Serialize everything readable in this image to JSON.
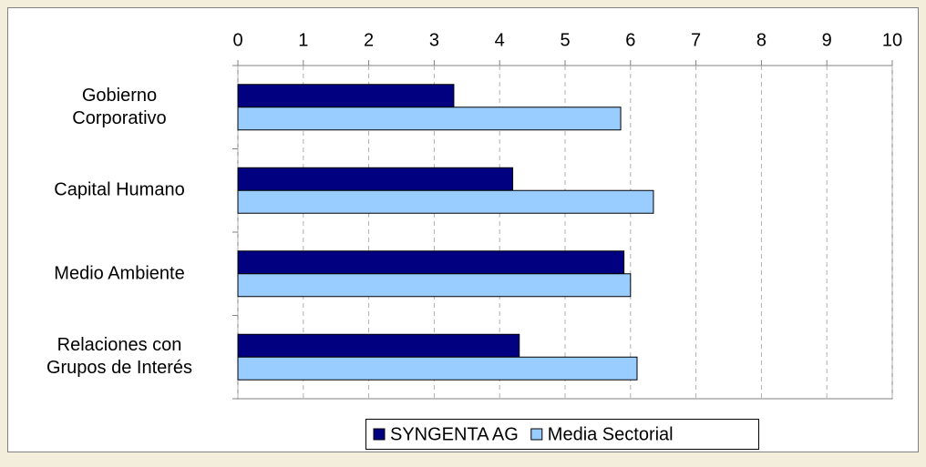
{
  "chart_data": {
    "type": "bar",
    "orientation": "horizontal",
    "categories": [
      "Gobierno\nCorporativo",
      "Capital Humano",
      "Medio Ambiente",
      "Relaciones con\nGrupos de Interés"
    ],
    "series": [
      {
        "name": "SYNGENTA AG",
        "color": "#000080",
        "values": [
          3.3,
          4.2,
          5.9,
          4.3
        ]
      },
      {
        "name": "Media Sectorial",
        "color": "#99ccff",
        "values": [
          5.85,
          6.35,
          6.0,
          6.1
        ]
      }
    ],
    "xlim": [
      0,
      10
    ],
    "xticks": [
      0,
      1,
      2,
      3,
      4,
      5,
      6,
      7,
      8,
      9,
      10
    ],
    "grid": true,
    "legend": "bottom"
  }
}
